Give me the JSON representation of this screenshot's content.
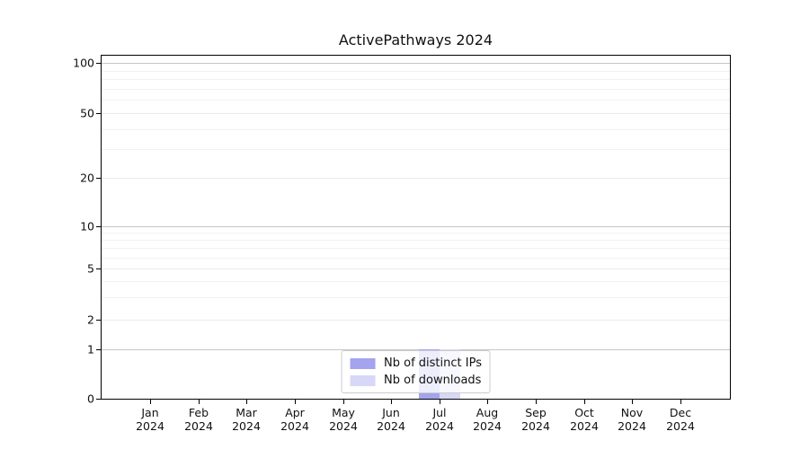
{
  "chart_data": {
    "type": "bar",
    "title": "ActivePathways 2024",
    "categories": [
      "Jan 2024",
      "Feb 2024",
      "Mar 2024",
      "Apr 2024",
      "May 2024",
      "Jun 2024",
      "Jul 2024",
      "Aug 2024",
      "Sep 2024",
      "Oct 2024",
      "Nov 2024",
      "Dec 2024"
    ],
    "months": [
      "Jan",
      "Feb",
      "Mar",
      "Apr",
      "May",
      "Jun",
      "Jul",
      "Aug",
      "Sep",
      "Oct",
      "Nov",
      "Dec"
    ],
    "year_label": "2024",
    "series": [
      {
        "name": "Nb of distinct IPs",
        "color": "#a3a3ef",
        "values": [
          0,
          0,
          0,
          0,
          0,
          0,
          1,
          0,
          0,
          0,
          0,
          0
        ]
      },
      {
        "name": "Nb of downloads",
        "color": "#d7d7f7",
        "values": [
          0,
          0,
          0,
          0,
          0,
          0,
          1,
          0,
          0,
          0,
          0,
          0
        ]
      }
    ],
    "yscale": "log (linear below 1)",
    "yticks": [
      0,
      1,
      2,
      5,
      10,
      20,
      50,
      100
    ],
    "ylim": [
      0,
      110
    ],
    "grid": "both",
    "legend_position": "lower center",
    "xlabel": "",
    "ylabel": ""
  }
}
